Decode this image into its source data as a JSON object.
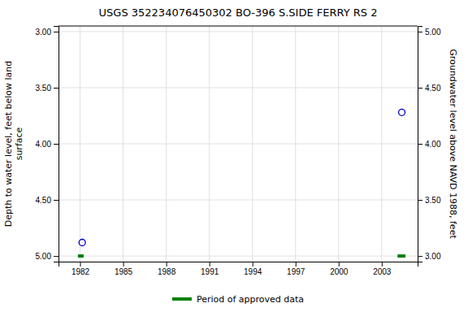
{
  "chart_data": {
    "type": "scatter",
    "title": "USGS 352234076450302 BO-396 S.SIDE FERRY RS 2",
    "ylabel": "Depth to water level, feet below land\nsurface",
    "y2label": "Groundwater level above NAVD 1988, feet",
    "series": [
      {
        "type": "scatter",
        "color": "#0000cc",
        "marker": "circle",
        "x": [
          1982.15,
          2004.4
        ],
        "values": [
          4.88,
          3.72
        ]
      },
      {
        "type": "segments",
        "name": "Period of approved data",
        "color": "#008000",
        "x_start": [
          1981.85,
          2004.1
        ],
        "x_end": [
          1982.25,
          2004.65
        ],
        "values": [
          5.0,
          5.0
        ]
      }
    ],
    "xlim": [
      1980.5,
      2005.5
    ],
    "xticks": [
      1982,
      1985,
      1988,
      1991,
      1994,
      1997,
      2000,
      2003
    ],
    "ylim": [
      5.05,
      2.95
    ],
    "yticks": [
      {
        "value": 3.0,
        "label": "3.00"
      },
      {
        "value": 3.5,
        "label": "3.50"
      },
      {
        "value": 4.0,
        "label": "4.00"
      },
      {
        "value": 4.5,
        "label": "4.50"
      },
      {
        "value": 5.0,
        "label": "5.00"
      }
    ],
    "y2lim": [
      2.95,
      5.05
    ],
    "y2ticks": [
      {
        "value": 3.0,
        "label": "3.00"
      },
      {
        "value": 3.5,
        "label": "3.50"
      },
      {
        "value": 4.0,
        "label": "4.00"
      },
      {
        "value": 4.5,
        "label": "4.50"
      },
      {
        "value": 5.0,
        "label": "5.00"
      }
    ],
    "grid": true,
    "legend": "bottom"
  }
}
